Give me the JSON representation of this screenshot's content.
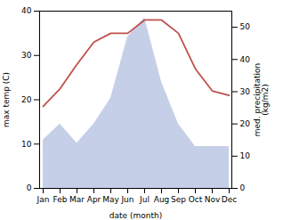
{
  "chart_data": {
    "type": "line",
    "categories": [
      "Jan",
      "Feb",
      "Mar",
      "Apr",
      "May",
      "Jun",
      "Jul",
      "Aug",
      "Sep",
      "Oct",
      "Nov",
      "Dec"
    ],
    "xlabel": "date (month)",
    "ylabel": "max temp (C)",
    "y2label": "med. precipitation\n(kg/m2)",
    "ylim": [
      0,
      40
    ],
    "yticks": [
      0,
      10,
      20,
      30,
      40
    ],
    "y2lim": [
      0,
      55
    ],
    "y2ticks": [
      0,
      10,
      20,
      30,
      40,
      50
    ],
    "grid": false,
    "series": [
      {
        "type": "area",
        "axis": "y2",
        "color": "#c6cfe8",
        "values": [
          15,
          20,
          14,
          20,
          28,
          47,
          53,
          33,
          20,
          13,
          13,
          13
        ]
      },
      {
        "type": "line",
        "axis": "y",
        "color": "#c0504d",
        "values": [
          18.5,
          22.5,
          28,
          33,
          35,
          35,
          38,
          38,
          35,
          27,
          22,
          21
        ]
      }
    ]
  }
}
